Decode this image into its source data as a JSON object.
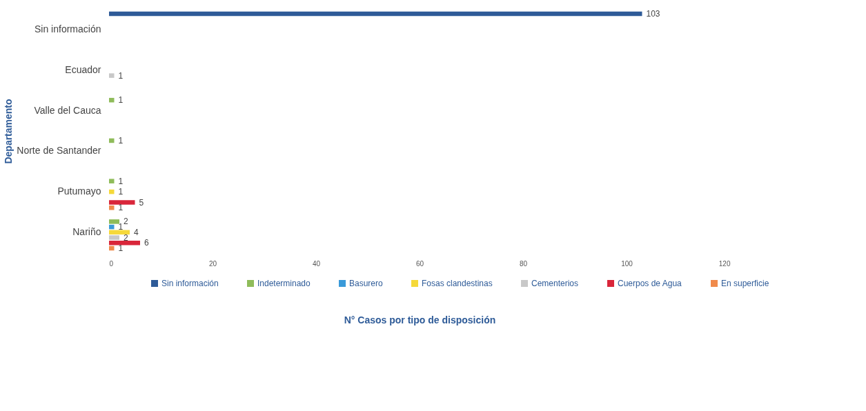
{
  "chart_data": {
    "type": "bar",
    "orientation": "horizontal",
    "categories": [
      "Sin información",
      "Ecuador",
      "Valle del Cauca",
      "Norte de Santander",
      "Putumayo",
      "Nariño"
    ],
    "series": [
      {
        "name": "Sin información",
        "color": "#2e5b98",
        "values": [
          103,
          null,
          null,
          null,
          null,
          null
        ]
      },
      {
        "name": "Indeterminado",
        "color": "#8fbc5a",
        "values": [
          null,
          null,
          1,
          1,
          1,
          2
        ]
      },
      {
        "name": "Basurero",
        "color": "#3a9ad9",
        "values": [
          null,
          null,
          null,
          null,
          null,
          1
        ]
      },
      {
        "name": "Fosas clandestinas",
        "color": "#f5d93a",
        "values": [
          null,
          null,
          null,
          null,
          1,
          4
        ]
      },
      {
        "name": "Cementerios",
        "color": "#c8c8c8",
        "values": [
          null,
          1,
          null,
          null,
          null,
          2
        ]
      },
      {
        "name": "Cuerpos de Agua",
        "color": "#d9263a",
        "values": [
          null,
          null,
          null,
          null,
          5,
          6
        ]
      },
      {
        "name": "En superficie",
        "color": "#f08a4b",
        "values": [
          null,
          null,
          null,
          null,
          1,
          1
        ]
      }
    ],
    "xlim": [
      0,
      120
    ],
    "xticks": [
      0,
      20,
      40,
      60,
      80,
      100,
      120
    ],
    "ylabel": "Departamento",
    "xlabel": "N° Casos por tipo de disposición",
    "data_labels": true,
    "grid": false,
    "legend": "bottom"
  }
}
